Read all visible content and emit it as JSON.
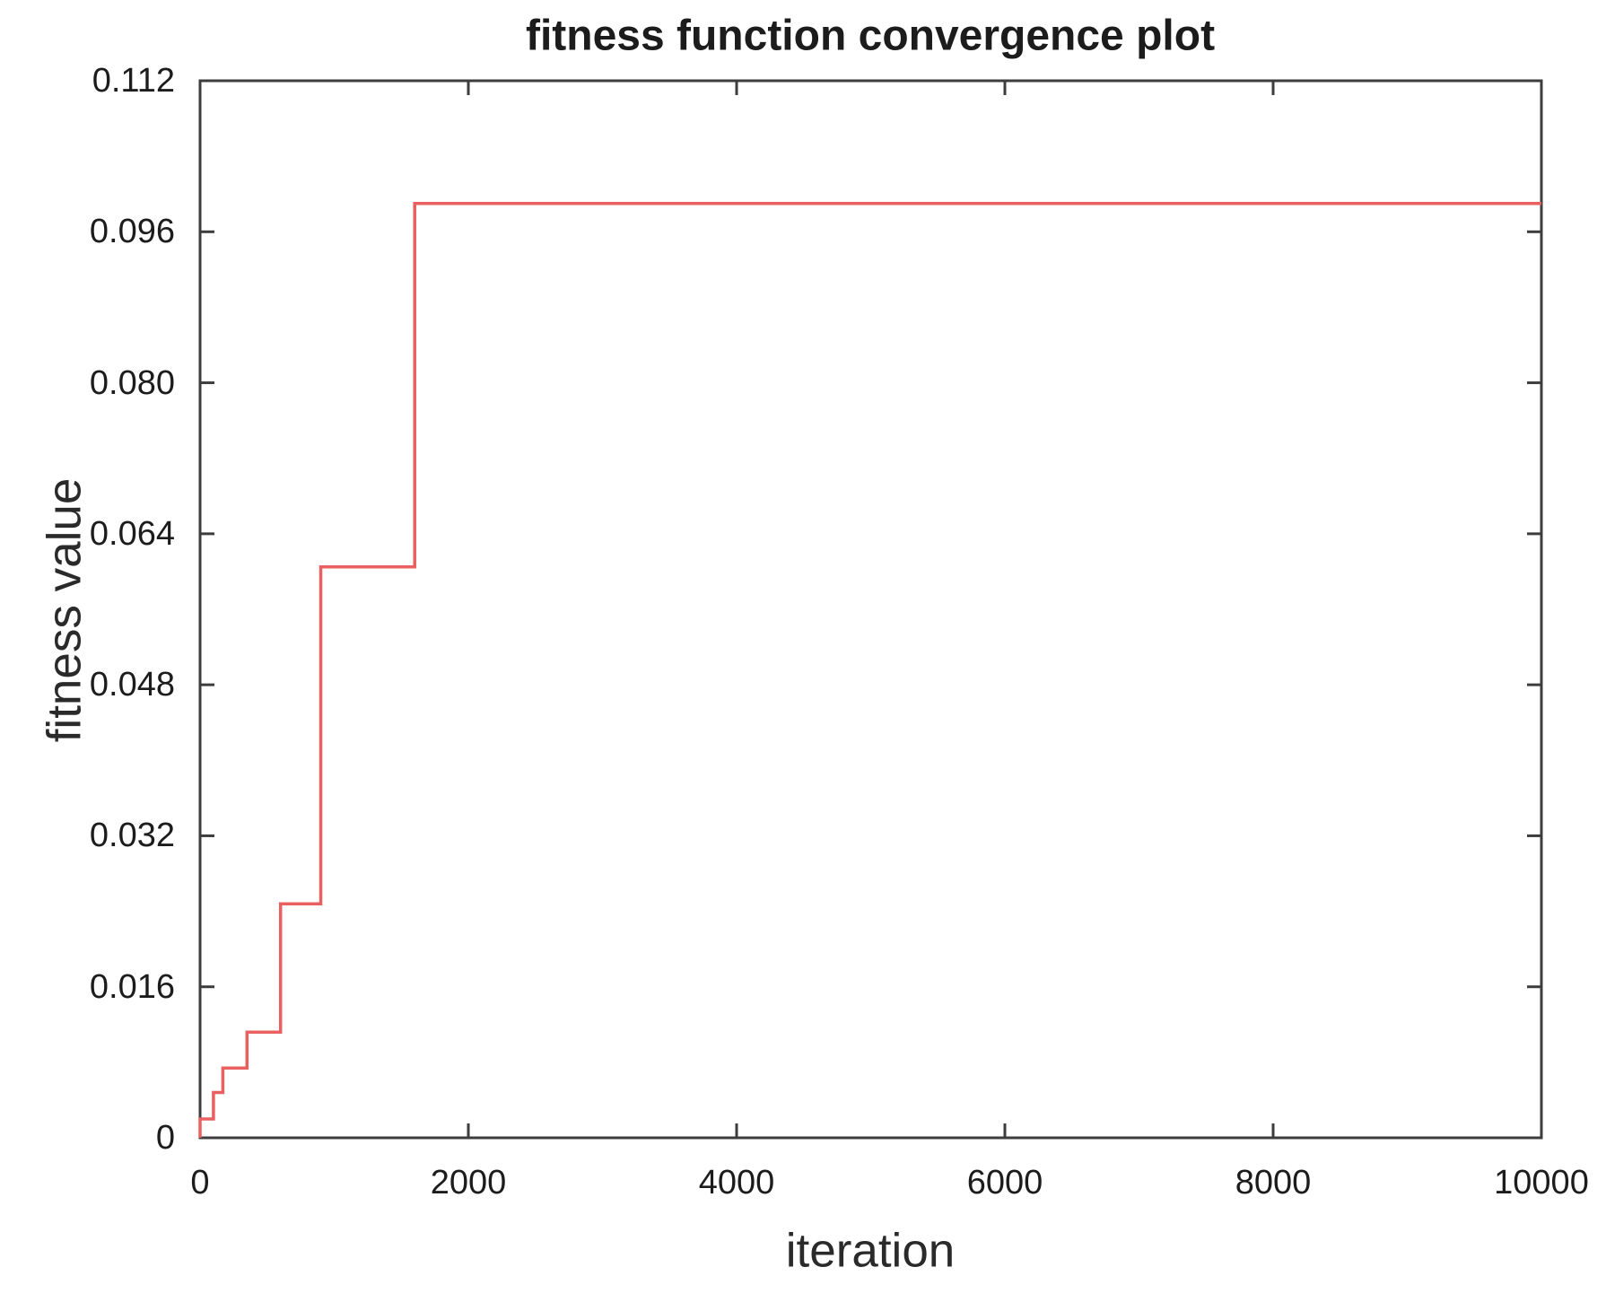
{
  "chart_data": {
    "type": "line",
    "title": "fitness function convergence plot",
    "xlabel": "iteration",
    "ylabel": "fitness value",
    "xlim": [
      0,
      10000
    ],
    "ylim": [
      0,
      0.112
    ],
    "grid": false,
    "box": true,
    "legend": "none",
    "x_ticks": {
      "values": [
        0,
        2000,
        4000,
        6000,
        8000,
        10000
      ],
      "labels": [
        "0",
        "2000",
        "4000",
        "6000",
        "8000",
        "10000"
      ]
    },
    "y_ticks": {
      "values": [
        0,
        0.016,
        0.032,
        0.048,
        0.064,
        0.08,
        0.096,
        0.112
      ],
      "labels": [
        "0",
        "0.016",
        "0.032",
        "0.048",
        "0.064",
        "0.080",
        "0.096",
        "0.112"
      ]
    },
    "series": [
      {
        "step": true,
        "color": "#e8605f",
        "points": [
          [
            0,
            0
          ],
          [
            0,
            0.002
          ],
          [
            100,
            0.002
          ],
          [
            100,
            0.0048
          ],
          [
            170,
            0.0048
          ],
          [
            170,
            0.0074
          ],
          [
            350,
            0.0074
          ],
          [
            350,
            0.0112
          ],
          [
            600,
            0.0112
          ],
          [
            600,
            0.0248
          ],
          [
            900,
            0.0248
          ],
          [
            900,
            0.0605
          ],
          [
            1600,
            0.0605
          ],
          [
            1600,
            0.099
          ],
          [
            10000,
            0.099
          ]
        ]
      }
    ],
    "colors": {
      "axis": "#3d3d3d",
      "text": "#1c1c1c",
      "background": "#ffffff"
    }
  }
}
